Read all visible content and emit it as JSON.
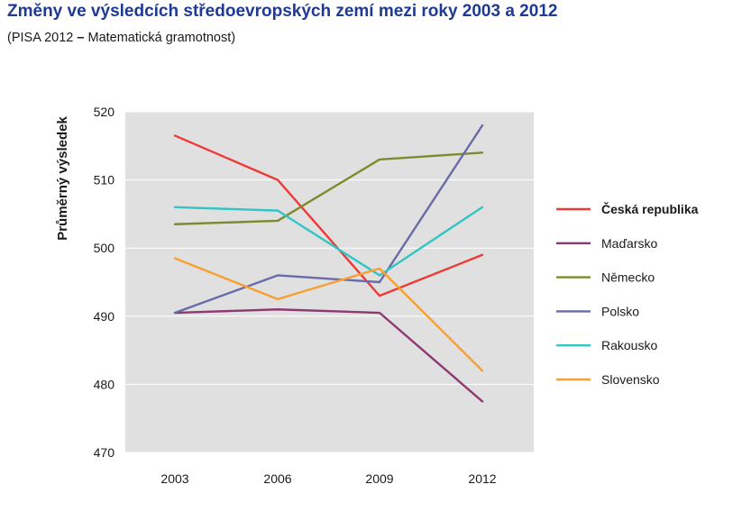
{
  "header": {
    "title": "Změny ve výsledcích středoevropských zemí mezi roky 2003 a 2012",
    "subtitle_prefix": "(PISA 2012 ",
    "subtitle_dash": "–",
    "subtitle_suffix": " Matematická gramotnost)"
  },
  "chart_data": {
    "type": "line",
    "title": "Změny ve výsledcích středoevropských zemí mezi roky 2003 a 2012",
    "subtitle": "(PISA 2012 – Matematická gramotnost)",
    "xlabel": "",
    "ylabel": "Průměrný výsledek",
    "categories": [
      "2003",
      "2006",
      "2009",
      "2012"
    ],
    "ylim": [
      470,
      520
    ],
    "yticks": [
      470,
      480,
      490,
      500,
      510,
      520
    ],
    "grid": true,
    "legend_position": "right",
    "plot_background": "#e0e0e0",
    "series": [
      {
        "name": "Česká republika",
        "color": "#ee3a36",
        "highlight": true,
        "values": [
          516.5,
          510,
          493,
          499
        ]
      },
      {
        "name": "Maďarsko",
        "color": "#8e3a72",
        "highlight": false,
        "values": [
          490.5,
          491,
          490.5,
          477.5
        ]
      },
      {
        "name": "Německo",
        "color": "#7d8a2e",
        "highlight": false,
        "values": [
          503.5,
          504,
          513,
          514
        ]
      },
      {
        "name": "Polsko",
        "color": "#6a6aa8",
        "highlight": false,
        "values": [
          490.5,
          496,
          495,
          518
        ]
      },
      {
        "name": "Rakousko",
        "color": "#33c4c4",
        "highlight": false,
        "values": [
          506,
          505.5,
          496,
          506
        ]
      },
      {
        "name": "Slovensko",
        "color": "#f7a030",
        "highlight": false,
        "values": [
          498.5,
          492.5,
          497,
          482
        ]
      }
    ]
  }
}
